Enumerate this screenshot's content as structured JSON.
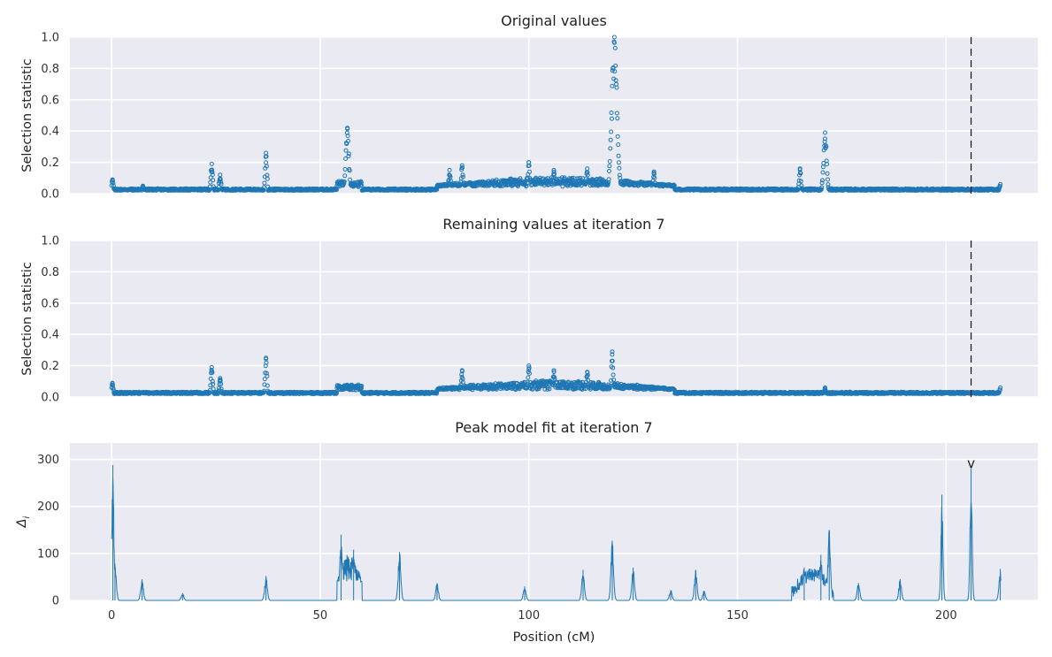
{
  "chart_data": [
    {
      "type": "scatter",
      "title": "Original values",
      "ylabel": "Selection statistic",
      "xlabel": "",
      "xlim": [
        -10,
        222
      ],
      "ylim": [
        0,
        1.0
      ],
      "xticks": [
        0,
        50,
        100,
        150,
        200
      ],
      "yticks": [
        0,
        0.2,
        0.4,
        0.6,
        0.8,
        1.0
      ],
      "ytick_labels": [
        "0.0",
        "0.2",
        "0.4",
        "0.6",
        "0.8",
        "1.0"
      ],
      "x_range": [
        0,
        213
      ],
      "marker": "open circle",
      "color": "#1f77b4",
      "vertical_line": {
        "x": 206,
        "style": "dashed",
        "color": "#111111"
      },
      "baseline": 0.02,
      "peaks": [
        {
          "x": 0.2,
          "y": 0.09
        },
        {
          "x": 7.5,
          "y": 0.05
        },
        {
          "x": 24,
          "y": 0.19
        },
        {
          "x": 26,
          "y": 0.12
        },
        {
          "x": 37,
          "y": 0.26
        },
        {
          "x": 56.5,
          "y": 0.42
        },
        {
          "x": 81,
          "y": 0.15
        },
        {
          "x": 84,
          "y": 0.18
        },
        {
          "x": 100,
          "y": 0.2
        },
        {
          "x": 106,
          "y": 0.15
        },
        {
          "x": 114,
          "y": 0.16
        },
        {
          "x": 120.5,
          "y": 1.0
        },
        {
          "x": 130,
          "y": 0.14
        },
        {
          "x": 165,
          "y": 0.16
        },
        {
          "x": 171,
          "y": 0.39
        },
        {
          "x": 213,
          "y": 0.06
        }
      ],
      "grid": true
    },
    {
      "type": "scatter",
      "title": "Remaining values at iteration 7",
      "ylabel": "Selection statistic",
      "xlabel": "",
      "xlim": [
        -10,
        222
      ],
      "ylim": [
        0,
        1.0
      ],
      "xticks": [
        0,
        50,
        100,
        150,
        200
      ],
      "yticks": [
        0,
        0.2,
        0.4,
        0.6,
        0.8,
        1.0
      ],
      "ytick_labels": [
        "0.0",
        "0.2",
        "0.4",
        "0.6",
        "0.8",
        "1.0"
      ],
      "x_range": [
        0,
        213
      ],
      "marker": "open circle",
      "color": "#1f77b4",
      "vertical_line": {
        "x": 206,
        "style": "dashed",
        "color": "#111111"
      },
      "baseline": 0.02,
      "peaks": [
        {
          "x": 0.2,
          "y": 0.09
        },
        {
          "x": 24,
          "y": 0.19
        },
        {
          "x": 26,
          "y": 0.12
        },
        {
          "x": 37,
          "y": 0.25
        },
        {
          "x": 56,
          "y": 0.07
        },
        {
          "x": 84,
          "y": 0.17
        },
        {
          "x": 100,
          "y": 0.2
        },
        {
          "x": 106,
          "y": 0.17
        },
        {
          "x": 114,
          "y": 0.16
        },
        {
          "x": 120,
          "y": 0.29
        },
        {
          "x": 171,
          "y": 0.06
        },
        {
          "x": 213,
          "y": 0.06
        }
      ],
      "grid": true
    },
    {
      "type": "line",
      "title": "Peak model fit at iteration 7",
      "ylabel": "Δ",
      "ylabel_subscript": "i",
      "xlabel": "Position (cM)",
      "xlim": [
        -10,
        222
      ],
      "ylim": [
        0,
        335
      ],
      "xticks": [
        0,
        50,
        100,
        150,
        200
      ],
      "yticks": [
        0,
        100,
        200,
        300
      ],
      "ytick_labels": [
        "0",
        "100",
        "200",
        "300"
      ],
      "color": "#1f77b4",
      "annotation": {
        "text": "v",
        "x": 206,
        "y": 290
      },
      "peaks": [
        {
          "x": 0.3,
          "y": 288
        },
        {
          "x": 0.8,
          "y": 78
        },
        {
          "x": 7.3,
          "y": 45
        },
        {
          "x": 17,
          "y": 15
        },
        {
          "x": 37,
          "y": 52
        },
        {
          "x": 55,
          "y": 140
        },
        {
          "x": 58,
          "y": 108
        },
        {
          "x": 69,
          "y": 103
        },
        {
          "x": 78,
          "y": 37
        },
        {
          "x": 99,
          "y": 30
        },
        {
          "x": 113,
          "y": 65
        },
        {
          "x": 120,
          "y": 127
        },
        {
          "x": 125,
          "y": 70
        },
        {
          "x": 134,
          "y": 22
        },
        {
          "x": 140,
          "y": 65
        },
        {
          "x": 142,
          "y": 20
        },
        {
          "x": 166,
          "y": 70
        },
        {
          "x": 170,
          "y": 97
        },
        {
          "x": 172,
          "y": 150
        },
        {
          "x": 179,
          "y": 37
        },
        {
          "x": 189,
          "y": 45
        },
        {
          "x": 199,
          "y": 225
        },
        {
          "x": 206,
          "y": 282
        },
        {
          "x": 213,
          "y": 67
        }
      ],
      "grid": true
    }
  ]
}
